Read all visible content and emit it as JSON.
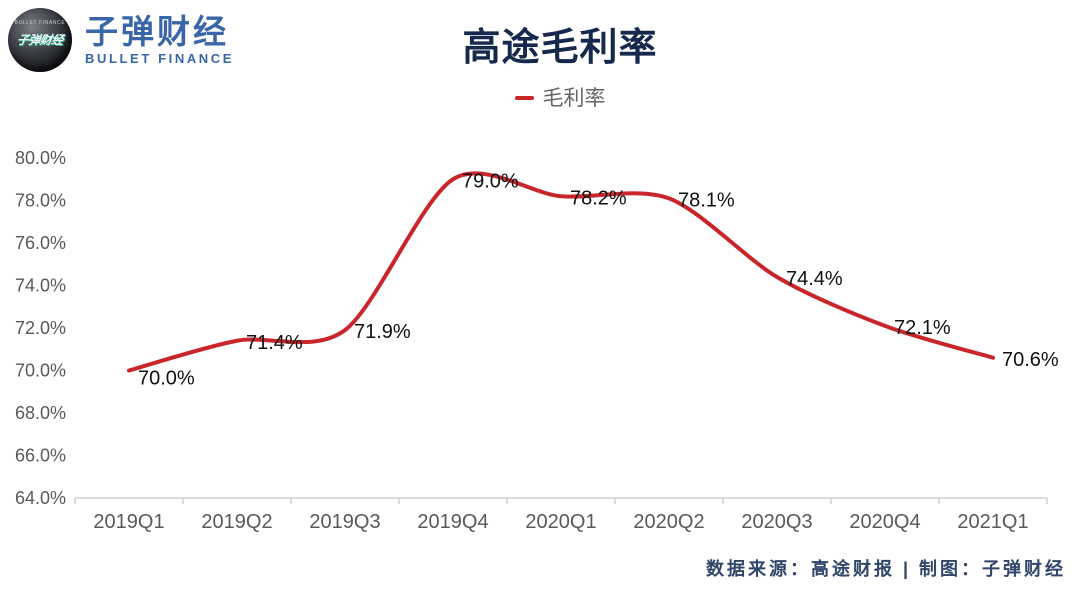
{
  "logo": {
    "badge_top_text": "BULLET FINANCE",
    "badge_main_text": "子弹财经",
    "name_cn": "子弹财经",
    "name_en": "BULLET FINANCE"
  },
  "title": "高途毛利率",
  "legend": {
    "label": "毛利率"
  },
  "footer": {
    "text": "数据来源：高途财报 | 制图：子弹财经"
  },
  "colors": {
    "line": "#c9262c",
    "title_text": "#16284b",
    "logo_blue": "#3a65a8",
    "axis_text": "#595959",
    "data_label_text": "#111111",
    "legend_text": "#666666",
    "footer_text": "#32466a",
    "axis_line": "#d0d0d0"
  },
  "chart_data": {
    "type": "line",
    "title": "高途毛利率",
    "categories": [
      "2019Q1",
      "2019Q2",
      "2019Q3",
      "2019Q4",
      "2020Q1",
      "2020Q2",
      "2020Q3",
      "2020Q4",
      "2021Q1"
    ],
    "series": [
      {
        "name": "毛利率",
        "color": "#c9262c",
        "values": [
          70.0,
          71.4,
          71.9,
          79.0,
          78.2,
          78.1,
          74.4,
          72.1,
          70.6
        ]
      }
    ],
    "data_labels": [
      "70.0%",
      "71.4%",
      "71.9%",
      "79.0%",
      "78.2%",
      "78.1%",
      "74.4%",
      "72.1%",
      "70.6%"
    ],
    "y_tick_labels": [
      "80.0%",
      "78.0%",
      "76.0%",
      "74.0%",
      "72.0%",
      "70.0%",
      "68.0%",
      "66.0%",
      "64.0%"
    ],
    "ylim": [
      64,
      80
    ],
    "y_step": 2,
    "grid": false,
    "legend_position": "top-center",
    "smoothed": true,
    "xlabel": "",
    "ylabel": ""
  }
}
